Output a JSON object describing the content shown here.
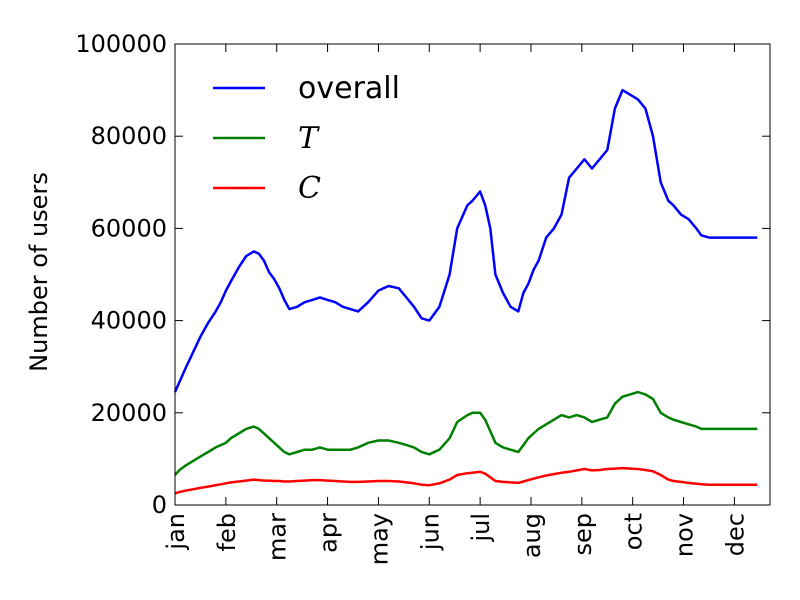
{
  "chart_data": {
    "type": "line",
    "xlabel": "",
    "ylabel": "Number of users",
    "ylim": [
      0,
      100000
    ],
    "yticks": [
      0,
      20000,
      40000,
      60000,
      80000,
      100000
    ],
    "xlim": [
      0,
      11.7
    ],
    "xticks": [
      {
        "label": "jan",
        "value": 0
      },
      {
        "label": "feb",
        "value": 1
      },
      {
        "label": "mar",
        "value": 2
      },
      {
        "label": "apr",
        "value": 3
      },
      {
        "label": "may",
        "value": 4
      },
      {
        "label": "jun",
        "value": 5
      },
      {
        "label": "jul",
        "value": 6
      },
      {
        "label": "aug",
        "value": 7
      },
      {
        "label": "sep",
        "value": 8
      },
      {
        "label": "oct",
        "value": 9
      },
      {
        "label": "nov",
        "value": 10
      },
      {
        "label": "dec",
        "value": 11
      }
    ],
    "grid": false,
    "legend_position": "top-left",
    "x": [
      0.0,
      0.08,
      0.2,
      0.35,
      0.5,
      0.65,
      0.8,
      0.9,
      1.0,
      1.1,
      1.25,
      1.4,
      1.55,
      1.65,
      1.75,
      1.85,
      1.95,
      2.05,
      2.15,
      2.25,
      2.4,
      2.55,
      2.7,
      2.85,
      3.0,
      3.15,
      3.3,
      3.45,
      3.6,
      3.8,
      4.0,
      4.2,
      4.4,
      4.55,
      4.7,
      4.85,
      5.0,
      5.2,
      5.4,
      5.55,
      5.75,
      5.85,
      6.0,
      6.1,
      6.2,
      6.3,
      6.45,
      6.6,
      6.75,
      6.85,
      6.95,
      7.05,
      7.15,
      7.3,
      7.45,
      7.6,
      7.75,
      7.9,
      8.05,
      8.2,
      8.35,
      8.5,
      8.65,
      8.8,
      8.95,
      9.1,
      9.25,
      9.4,
      9.55,
      9.7,
      9.8,
      9.95,
      10.1,
      10.25,
      10.35,
      10.5,
      10.7,
      10.9,
      11.1,
      11.3,
      11.45
    ],
    "series": [
      {
        "name": "overall",
        "color": "#0000ff",
        "values": [
          24500,
          26500,
          29500,
          33000,
          36500,
          39500,
          42000,
          44000,
          46500,
          48500,
          51500,
          54000,
          55000,
          54500,
          53000,
          50500,
          49000,
          47000,
          44500,
          42500,
          43000,
          44000,
          44500,
          45000,
          44500,
          44000,
          43000,
          42500,
          42000,
          44000,
          46500,
          47500,
          47000,
          45000,
          43000,
          40500,
          40000,
          43000,
          50000,
          60000,
          65000,
          66000,
          68000,
          65000,
          60000,
          50000,
          46000,
          43000,
          42000,
          46000,
          48000,
          51000,
          53000,
          58000,
          60000,
          63000,
          71000,
          73000,
          75000,
          73000,
          75000,
          77000,
          86000,
          90000,
          89000,
          88000,
          86000,
          80000,
          70000,
          66000,
          65000,
          63000,
          62000,
          60000,
          58500,
          58000,
          58000,
          58000,
          58000,
          58000,
          58000
        ]
      },
      {
        "name": "T",
        "color": "#008000",
        "values": [
          6500,
          7500,
          8500,
          9500,
          10500,
          11500,
          12500,
          13000,
          13500,
          14500,
          15500,
          16500,
          17000,
          16500,
          15500,
          14500,
          13500,
          12500,
          11500,
          11000,
          11500,
          12000,
          12000,
          12500,
          12000,
          12000,
          12000,
          12000,
          12500,
          13500,
          14000,
          14000,
          13500,
          13000,
          12500,
          11500,
          11000,
          12000,
          14500,
          18000,
          19500,
          20000,
          20000,
          18500,
          16000,
          13500,
          12500,
          12000,
          11500,
          13000,
          14500,
          15500,
          16500,
          17500,
          18500,
          19500,
          19000,
          19500,
          19000,
          18000,
          18500,
          19000,
          22000,
          23500,
          24000,
          24500,
          24000,
          23000,
          20000,
          19000,
          18500,
          18000,
          17500,
          17000,
          16500,
          16500,
          16500,
          16500,
          16500,
          16500,
          16500
        ]
      },
      {
        "name": "C",
        "color": "#ff0000",
        "values": [
          2500,
          2800,
          3100,
          3400,
          3700,
          4000,
          4300,
          4500,
          4700,
          4900,
          5100,
          5300,
          5500,
          5400,
          5300,
          5300,
          5200,
          5200,
          5100,
          5100,
          5200,
          5300,
          5400,
          5400,
          5300,
          5200,
          5100,
          5000,
          5000,
          5100,
          5200,
          5200,
          5100,
          4900,
          4700,
          4400,
          4300,
          4700,
          5500,
          6500,
          6900,
          7000,
          7200,
          6800,
          6000,
          5200,
          5000,
          4900,
          4800,
          5100,
          5400,
          5700,
          6000,
          6400,
          6700,
          7000,
          7200,
          7500,
          7800,
          7500,
          7600,
          7800,
          7900,
          8000,
          7900,
          7800,
          7600,
          7300,
          6500,
          5500,
          5200,
          5000,
          4800,
          4600,
          4500,
          4400,
          4400,
          4400,
          4400,
          4400,
          4400
        ]
      }
    ]
  },
  "legend": [
    {
      "label": "overall",
      "math": false,
      "color": "#0000ff"
    },
    {
      "label": "T",
      "math": true,
      "color": "#008000"
    },
    {
      "label": "C",
      "math": true,
      "color": "#ff0000"
    }
  ]
}
